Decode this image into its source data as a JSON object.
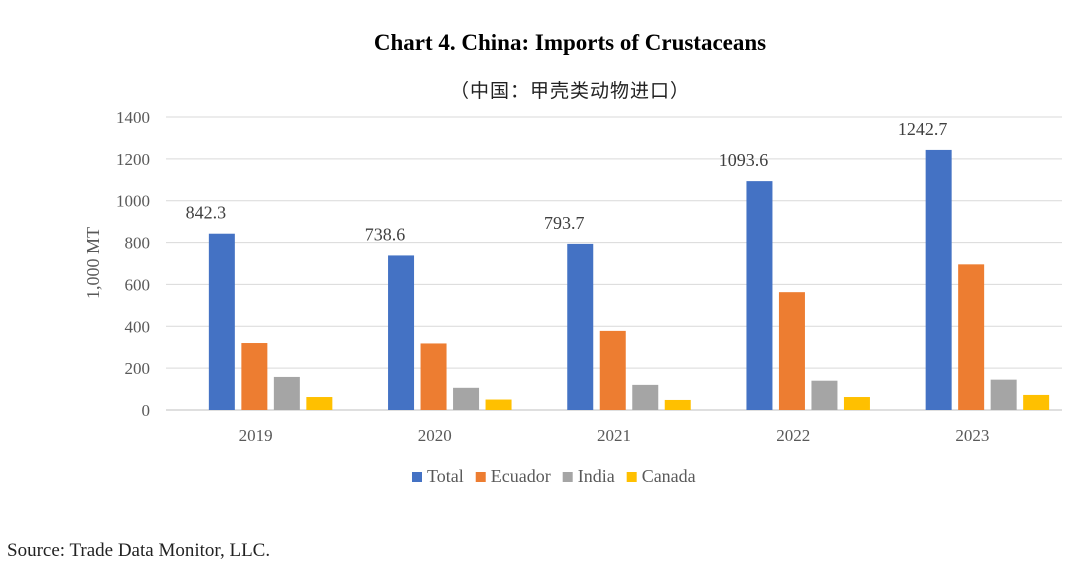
{
  "chart_data": {
    "type": "bar",
    "title": "Chart 4. China: Imports of Crustaceans",
    "subtitle": "（中国：甲壳类动物进口）",
    "ylabel": "1,000 MT",
    "xlabel": "",
    "ylim": [
      0,
      1400
    ],
    "yticks": [
      0,
      200,
      400,
      600,
      800,
      1000,
      1200,
      1400
    ],
    "grid": true,
    "legend_position": "bottom",
    "categories": [
      "2019",
      "2020",
      "2021",
      "2022",
      "2023"
    ],
    "series": [
      {
        "name": "Total",
        "color": "#4472C4",
        "values": [
          842.3,
          738.6,
          793.7,
          1093.6,
          1242.7
        ],
        "labels": [
          "842.3",
          "738.6",
          "793.7",
          "1093.6",
          "1242.7"
        ]
      },
      {
        "name": "Ecuador",
        "color": "#ED7D31",
        "values": [
          320,
          318,
          378,
          563,
          696
        ]
      },
      {
        "name": "India",
        "color": "#A5A5A5",
        "values": [
          158,
          106,
          120,
          140,
          145
        ]
      },
      {
        "name": "Canada",
        "color": "#FFC000",
        "values": [
          62,
          50,
          48,
          62,
          72
        ]
      }
    ]
  },
  "source": "Source: Trade Data Monitor, LLC."
}
